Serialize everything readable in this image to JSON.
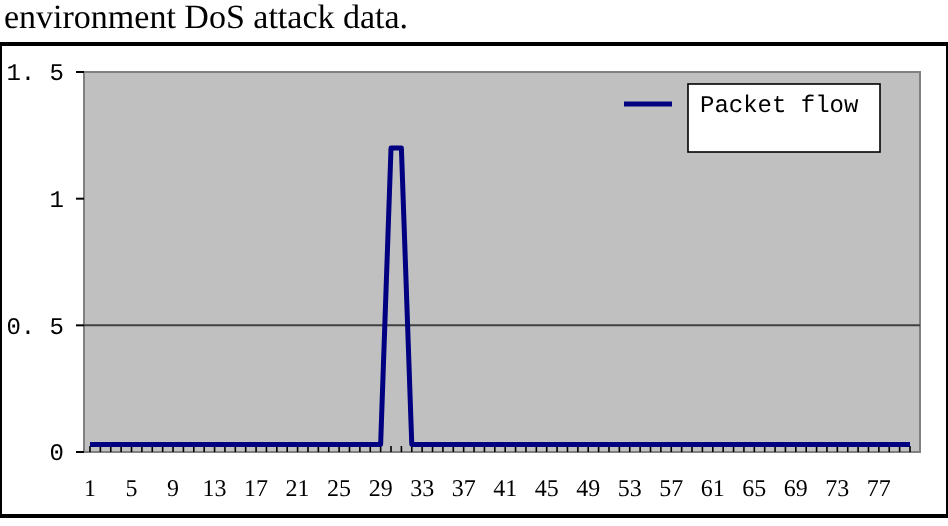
{
  "chart_data": {
    "type": "line",
    "title": "environment DoS attack data.",
    "categories": [
      "1",
      null,
      null,
      null,
      "5",
      null,
      null,
      null,
      "9",
      null,
      null,
      null,
      "13",
      null,
      null,
      null,
      "17",
      null,
      null,
      null,
      "21",
      null,
      null,
      null,
      "25",
      null,
      null,
      null,
      "29",
      null,
      null,
      null,
      "33",
      null,
      null,
      null,
      "37",
      null,
      null,
      null,
      "41",
      null,
      null,
      null,
      "45",
      null,
      null,
      null,
      "49",
      null,
      null,
      null,
      "53",
      null,
      null,
      null,
      "57",
      null,
      null,
      null,
      "61",
      null,
      null,
      null,
      "65",
      null,
      null,
      null,
      "69",
      null,
      null,
      null,
      "73",
      null,
      null,
      null,
      "77",
      null,
      null,
      null
    ],
    "series": [
      {
        "name": "Packet flow",
        "color": "#000080",
        "values": [
          0.03,
          0.03,
          0.03,
          0.03,
          0.03,
          0.03,
          0.03,
          0.03,
          0.03,
          0.03,
          0.03,
          0.03,
          0.03,
          0.03,
          0.03,
          0.03,
          0.03,
          0.03,
          0.03,
          0.03,
          0.03,
          0.03,
          0.03,
          0.03,
          0.03,
          0.03,
          0.03,
          0.03,
          0.03,
          1.2,
          1.2,
          0.03,
          0.03,
          0.03,
          0.03,
          0.03,
          0.03,
          0.03,
          0.03,
          0.03,
          0.03,
          0.03,
          0.03,
          0.03,
          0.03,
          0.03,
          0.03,
          0.03,
          0.03,
          0.03,
          0.03,
          0.03,
          0.03,
          0.03,
          0.03,
          0.03,
          0.03,
          0.03,
          0.03,
          0.03,
          0.03,
          0.03,
          0.03,
          0.03,
          0.03,
          0.03,
          0.03,
          0.03,
          0.03,
          0.03,
          0.03,
          0.03,
          0.03,
          0.03,
          0.03,
          0.03,
          0.03,
          0.03,
          0.03,
          0.03
        ]
      }
    ],
    "ylim": [
      0,
      1.5
    ],
    "yticks": [
      0,
      {
        "value": 0.5,
        "label": "0. 5"
      },
      1,
      {
        "value": 1.5,
        "label": "1. 5"
      }
    ],
    "ref_lines": [
      {
        "axis": "y",
        "value": 0.5,
        "color": "#404040"
      }
    ],
    "legend": "top right",
    "line_style": "solid"
  }
}
